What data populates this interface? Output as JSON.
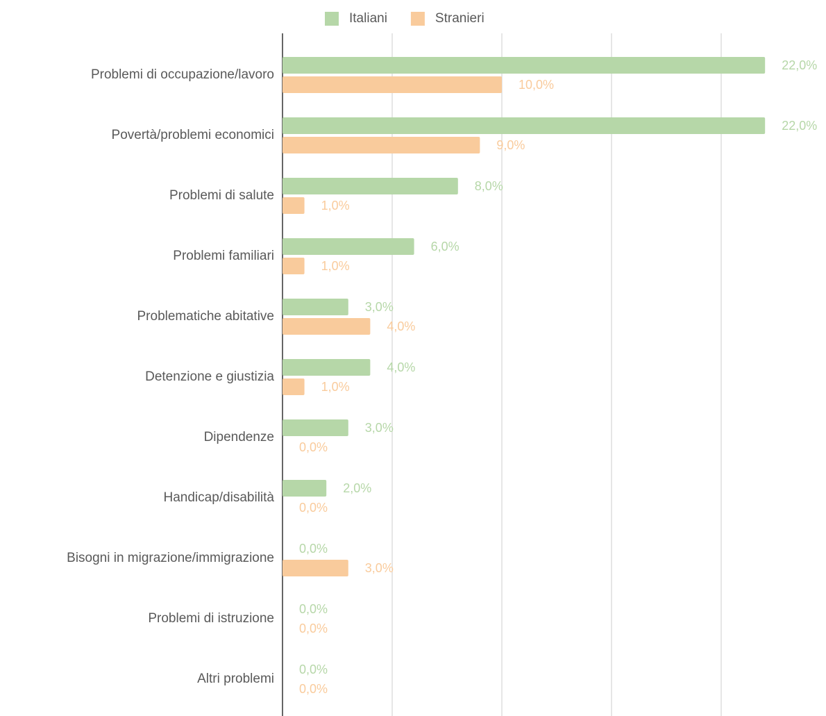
{
  "chart_data": {
    "type": "hbar",
    "categories": [
      "Problemi di occupazione/lavoro",
      "Povertà/problemi economici",
      "Problemi di salute",
      "Problemi familiari",
      "Problematiche abitative",
      "Detenzione e giustizia",
      "Dipendenze",
      "Handicap/disabilità",
      "Bisogni in migrazione/immigrazione",
      "Problemi di istruzione",
      "Altri problemi"
    ],
    "series": [
      {
        "name": "Italiani",
        "color": "#b6d7a8",
        "values": [
          22,
          22,
          8,
          6,
          3,
          4,
          3,
          2,
          0,
          0,
          0
        ],
        "value_labels": [
          "22,0%",
          "22,0%",
          "8,0%",
          "6,0%",
          "3,0%",
          "4,0%",
          "3,0%",
          "2,0%",
          "0,0%",
          "0,0%",
          "0,0%"
        ]
      },
      {
        "name": "Stranieri",
        "color": "#f9cb9c",
        "values": [
          10,
          9,
          1,
          1,
          4,
          1,
          0,
          0,
          3,
          0,
          0
        ],
        "value_labels": [
          "10,0%",
          "9,0%",
          "1,0%",
          "1,0%",
          "4,0%",
          "1,0%",
          "0,0%",
          "0,0%",
          "3,0%",
          "0,0%",
          "0,0%"
        ]
      }
    ],
    "xlim": [
      0,
      25
    ],
    "xticks": [
      0,
      5,
      10,
      15,
      20
    ],
    "grid": true,
    "legend": "top"
  }
}
